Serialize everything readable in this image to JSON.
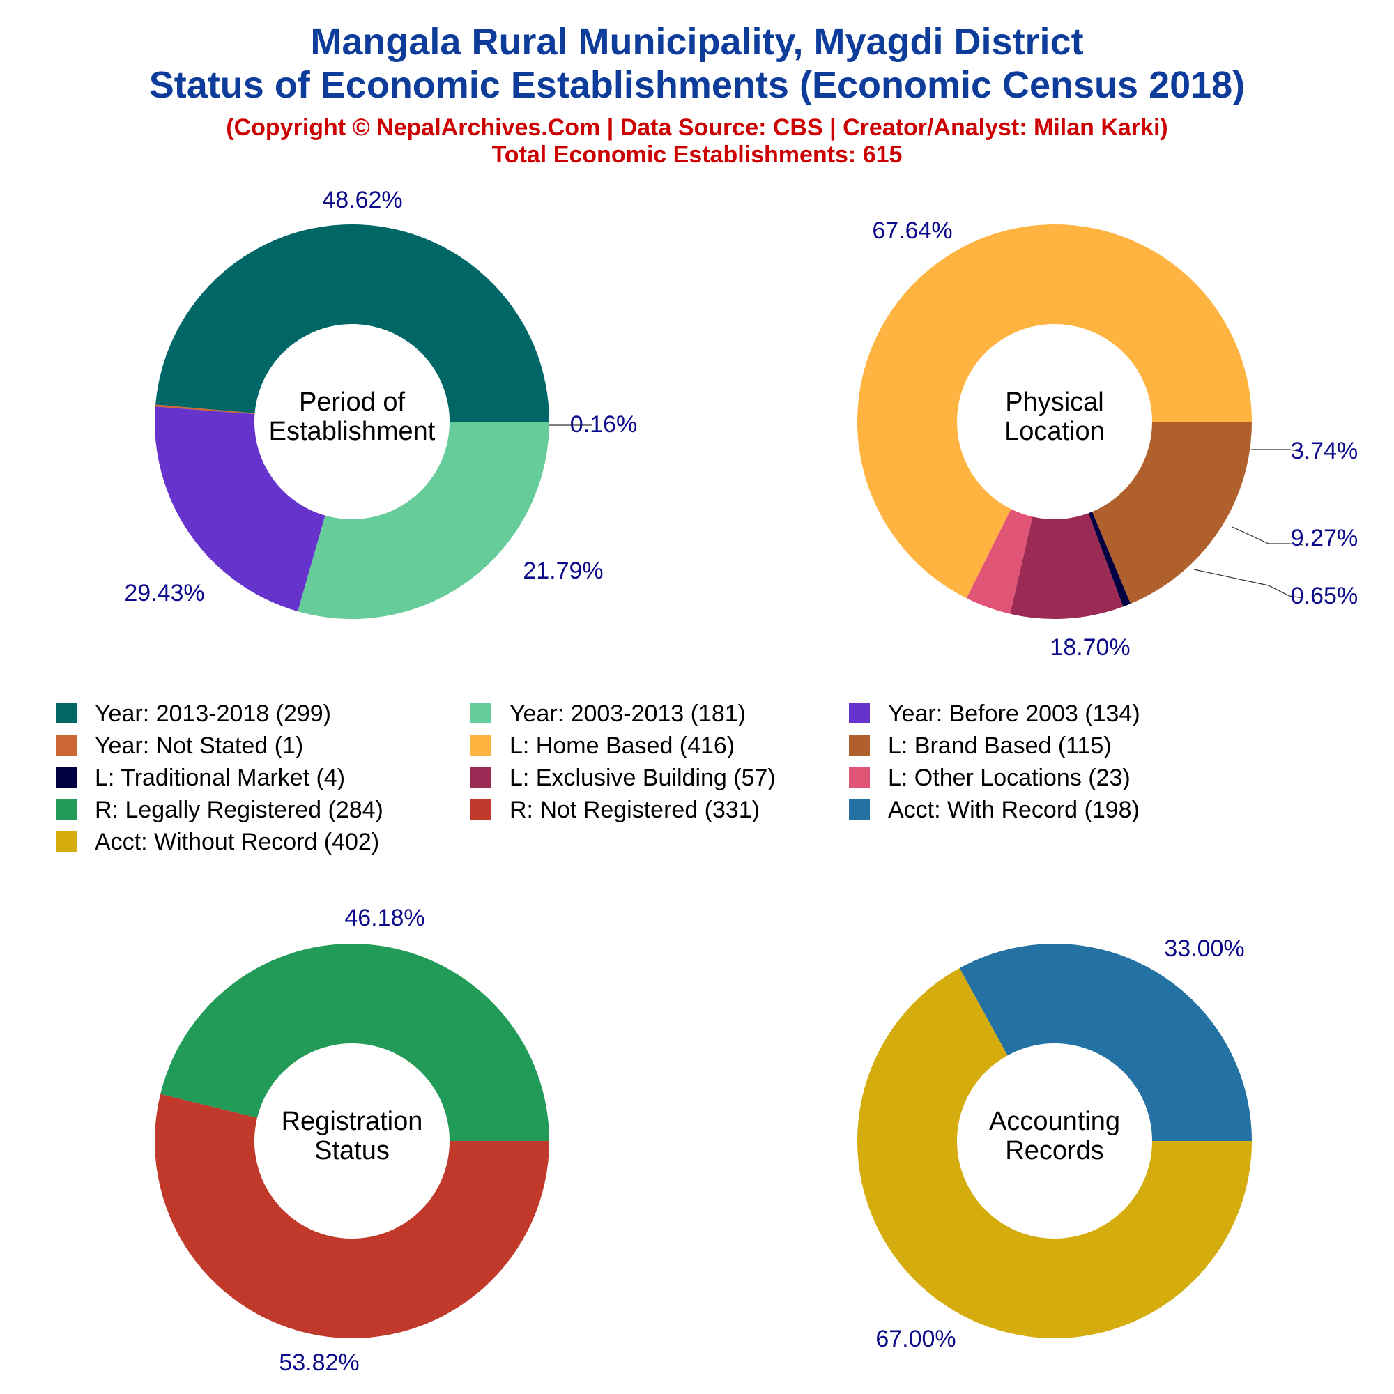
{
  "header": {
    "title_line1": "Mangala Rural Municipality, Myagdi District",
    "title_line2": "Status of Economic Establishments (Economic Census 2018)",
    "copyright": "(Copyright © NepalArchives.Com | Data Source: CBS | Creator/Analyst: Milan Karki)",
    "total": "Total Economic Establishments: 615"
  },
  "legend": [
    {
      "label": "Year: 2013-2018 (299)",
      "color": "#006666"
    },
    {
      "label": "Year: 2003-2013 (181)",
      "color": "#66cc99"
    },
    {
      "label": "Year: Before 2003 (134)",
      "color": "#6633cc"
    },
    {
      "label": "Year: Not Stated (1)",
      "color": "#cc6633"
    },
    {
      "label": "L: Home Based (416)",
      "color": "#ffb340"
    },
    {
      "label": "L: Brand Based (115)",
      "color": "#b0602d"
    },
    {
      "label": "L: Traditional Market (4)",
      "color": "#000040"
    },
    {
      "label": "L: Exclusive Building (57)",
      "color": "#9b2a55"
    },
    {
      "label": "L: Other Locations (23)",
      "color": "#e05575"
    },
    {
      "label": "R: Legally Registered (284)",
      "color": "#229a58"
    },
    {
      "label": "R: Not Registered (331)",
      "color": "#c0392b"
    },
    {
      "label": "Acct: With Record (198)",
      "color": "#2471a3"
    },
    {
      "label": "Acct: Without Record (402)",
      "color": "#d4ac0d"
    }
  ],
  "chart_data": [
    {
      "type": "pie",
      "center_label": [
        "Period of",
        "Establishment"
      ],
      "slices": [
        {
          "name": "Year: 2013-2018",
          "value": 299,
          "pct": "48.62%",
          "color": "#006666"
        },
        {
          "name": "Year: Not Stated",
          "value": 1,
          "pct": "0.16%",
          "color": "#cc6633"
        },
        {
          "name": "Year: Before 2003",
          "value": 134,
          "pct": "21.79%",
          "color": "#6633cc"
        },
        {
          "name": "Year: 2003-2013",
          "value": 181,
          "pct": "29.43%",
          "color": "#66cc99"
        }
      ]
    },
    {
      "type": "pie",
      "center_label": [
        "Physical",
        "Location"
      ],
      "slices": [
        {
          "name": "L: Home Based",
          "value": 416,
          "pct": "67.64%",
          "color": "#ffb340"
        },
        {
          "name": "L: Other Locations",
          "value": 23,
          "pct": "3.74%",
          "color": "#e05575"
        },
        {
          "name": "L: Exclusive Building",
          "value": 57,
          "pct": "9.27%",
          "color": "#9b2a55"
        },
        {
          "name": "L: Traditional Market",
          "value": 4,
          "pct": "0.65%",
          "color": "#000040"
        },
        {
          "name": "L: Brand Based",
          "value": 115,
          "pct": "18.70%",
          "color": "#b0602d"
        }
      ]
    },
    {
      "type": "pie",
      "center_label": [
        "Registration",
        "Status"
      ],
      "slices": [
        {
          "name": "R: Legally Registered",
          "value": 284,
          "pct": "46.18%",
          "color": "#229a58"
        },
        {
          "name": "R: Not Registered",
          "value": 331,
          "pct": "53.82%",
          "color": "#c0392b"
        }
      ]
    },
    {
      "type": "pie",
      "center_label": [
        "Accounting",
        "Records"
      ],
      "slices": [
        {
          "name": "Acct: With Record",
          "value": 198,
          "pct": "33.00%",
          "color": "#2471a3"
        },
        {
          "name": "Acct: Without Record",
          "value": 402,
          "pct": "67.00%",
          "color": "#d4ac0d"
        }
      ]
    }
  ]
}
